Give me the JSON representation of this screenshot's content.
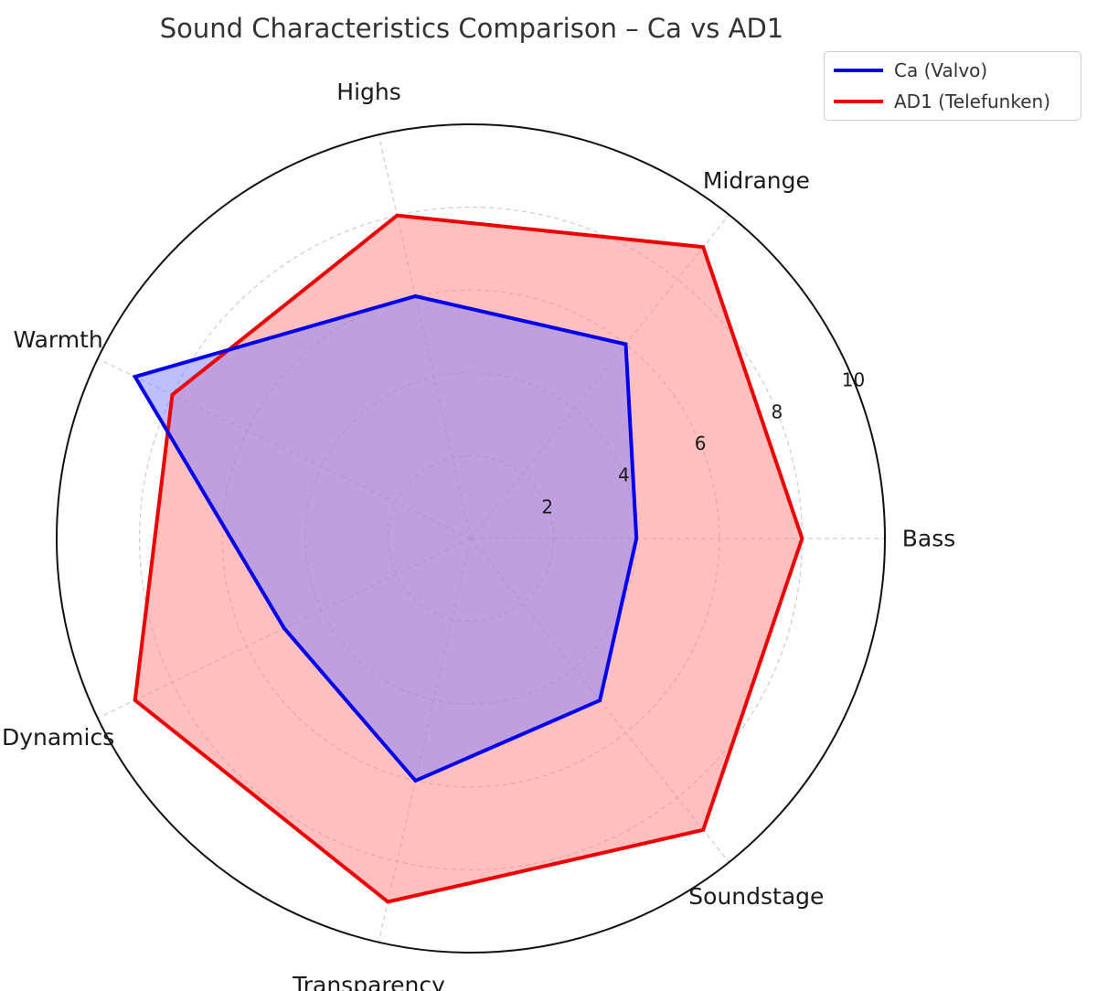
{
  "chart_data": {
    "type": "radar",
    "title": "Sound Characteristics Comparison – Ca vs AD1",
    "categories": [
      "Bass",
      "Midrange",
      "Highs",
      "Warmth",
      "Dynamics",
      "Transparency",
      "Soundstage"
    ],
    "series": [
      {
        "name": "Ca (Valvo)",
        "values": [
          4,
          6,
          6,
          9,
          5,
          6,
          5
        ],
        "color": "#0000ee",
        "fill": "#8080ff"
      },
      {
        "name": "AD1 (Telefunken)",
        "values": [
          8,
          9,
          8,
          8,
          9,
          9,
          9
        ],
        "color": "#ee0000",
        "fill": "#ff7f7f"
      }
    ],
    "rlim": [
      0,
      10
    ],
    "rticks": [
      2,
      4,
      6,
      8,
      10
    ],
    "rtick_labels": [
      "2",
      "4",
      "6",
      "8",
      "10"
    ],
    "grid": true,
    "legend_position": "top-right"
  }
}
